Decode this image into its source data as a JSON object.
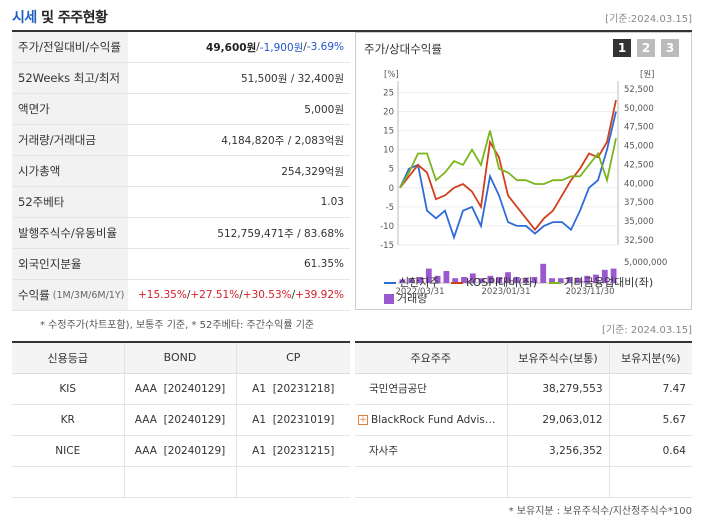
{
  "header": {
    "title_main": "시세",
    "title_rest": " 및 주주현황",
    "ref_date": "[기준:2024.03.15]"
  },
  "info": {
    "rows": [
      {
        "label": "주가/전일대비/수익률",
        "price": "49,600원",
        "sep1": " / ",
        "change": "-1,900원",
        "sep2": " / ",
        "rate": "-3.69%"
      },
      {
        "label": "52Weeks 최고/최저",
        "value": "51,500원 / 32,400원"
      },
      {
        "label": "액면가",
        "value": "5,000원"
      },
      {
        "label": "거래량/거래대금",
        "value": "4,184,820주 / 2,083억원"
      },
      {
        "label": "시가총액",
        "value": "254,329억원"
      },
      {
        "label": "52주베타",
        "value": "1.03"
      },
      {
        "label": "발행주식수/유동비율",
        "value": "512,759,471주 / 83.68%"
      },
      {
        "label": "외국인지분율",
        "value": "61.35%"
      },
      {
        "label": "수익률",
        "label_sub": "(1M/3M/6M/1Y)",
        "r1": "+15.35%",
        "r2": "+27.51%",
        "r3": "+30.53%",
        "r4": "+39.92%",
        "slash": " / "
      }
    ],
    "note": "* 수정주가(차트포함), 보통주 기준, * 52주베타: 주간수익률 기준"
  },
  "chart_panel": {
    "title": "주가/상대수익률",
    "pages": [
      "1",
      "2",
      "3"
    ],
    "ref_date": "[기준: 2024.03.15]"
  },
  "chart_data": {
    "type": "line",
    "left_axis": {
      "unit": "[%]",
      "ticks": [
        25,
        20,
        15,
        10,
        5,
        0,
        -5,
        -10,
        -15
      ]
    },
    "right_axis": {
      "unit": "[원]",
      "ticks": [
        "52,500",
        "50,000",
        "47,500",
        "45,000",
        "42,500",
        "40,000",
        "37,500",
        "35,000",
        "32,500"
      ]
    },
    "volume_axis": {
      "tick": "5,000,000"
    },
    "x_ticks": [
      "2022/03/31",
      "2023/01/31",
      "2023/11/30"
    ],
    "series": [
      {
        "name": "신한지주",
        "color": "#2f6bd8",
        "values": [
          0,
          5,
          6,
          -6,
          -8,
          -6,
          -13,
          -6,
          -5,
          -10,
          3,
          -2,
          -9,
          -10,
          -10,
          -12,
          -10,
          -9,
          -9,
          -11,
          -6,
          0,
          2,
          10,
          20
        ]
      },
      {
        "name": "KOSPI대비(좌)",
        "color": "#d0401c",
        "values": [
          0,
          3,
          6,
          4,
          -3,
          -2,
          0,
          1,
          -1,
          -5,
          12,
          8,
          -2,
          -5,
          -8,
          -11,
          -8,
          -6,
          -2,
          2,
          5,
          9,
          8,
          12,
          23
        ]
      },
      {
        "name": "기타금융업대비(좌)",
        "color": "#7ab51d",
        "values": [
          0,
          4,
          9,
          9,
          2,
          4,
          7,
          6,
          10,
          6,
          15,
          5,
          4,
          2,
          2,
          1,
          1,
          2,
          2,
          3,
          3,
          6,
          9,
          2,
          13
        ]
      }
    ],
    "volume_name": "거래량",
    "volume_color": "#9b59d0",
    "volume_values": [
      0.15,
      0.2,
      0.25,
      0.6,
      0.3,
      0.5,
      0.2,
      0.25,
      0.4,
      0.2,
      0.3,
      0.25,
      0.45,
      0.25,
      0.2,
      0.25,
      0.8,
      0.2,
      0.2,
      0.25,
      0.2,
      0.3,
      0.35,
      0.55,
      0.6
    ],
    "left_range": [
      -15,
      28
    ],
    "legend_placement": "bottom"
  },
  "credit": {
    "headers": [
      "신용등급",
      "BOND",
      "CP"
    ],
    "rows": [
      {
        "agency": "KIS",
        "bond_grade": "AAA",
        "bond_date": "[20240129]",
        "cp_grade": "A1",
        "cp_date": "[20231218]"
      },
      {
        "agency": "KR",
        "bond_grade": "AAA",
        "bond_date": "[20240129]",
        "cp_grade": "A1",
        "cp_date": "[20231019]"
      },
      {
        "agency": "NICE",
        "bond_grade": "AAA",
        "bond_date": "[20240129]",
        "cp_grade": "A1",
        "cp_date": "[20231215]"
      },
      {
        "agency": "",
        "bond_grade": "",
        "bond_date": "",
        "cp_grade": "",
        "cp_date": ""
      }
    ]
  },
  "holders": {
    "headers": [
      "주요주주",
      "보유주식수(보통)",
      "보유지분(%)"
    ],
    "rows": [
      {
        "name": "국민연금공단",
        "shares": "38,279,553",
        "pct": "7.47",
        "expand": false
      },
      {
        "name": "BlackRock Fund Advis…",
        "shares": "29,063,012",
        "pct": "5.67",
        "expand": true
      },
      {
        "name": "자사주",
        "shares": "3,256,352",
        "pct": "0.64",
        "expand": false
      },
      {
        "name": "",
        "shares": "",
        "pct": "",
        "expand": false
      }
    ],
    "note": "* 보유지분 : 보유주식수/지산정주식수*100"
  },
  "icons": {
    "expand": "plus-square-icon"
  }
}
